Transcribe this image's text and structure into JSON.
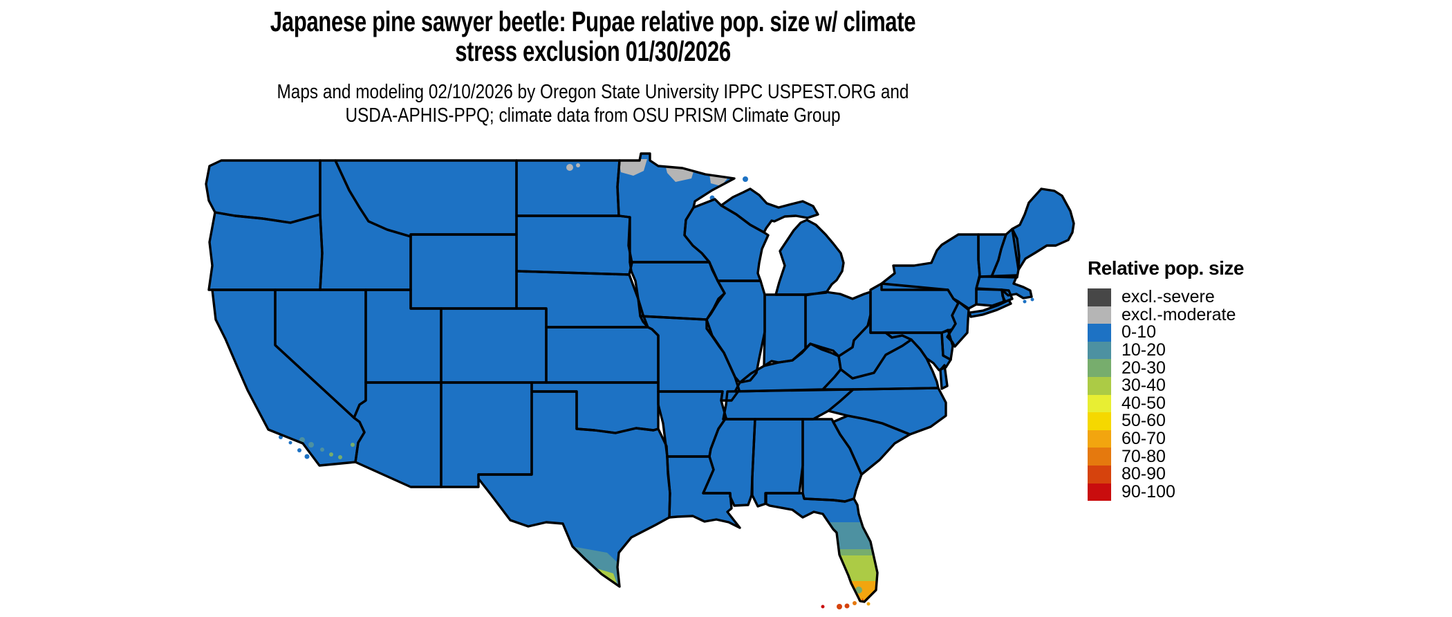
{
  "header": {
    "title_line1": "Japanese pine sawyer beetle: Pupae relative pop. size w/ climate",
    "title_line2": "stress exclusion 01/30/2026",
    "subtitle_line1": "Maps and modeling 02/10/2026 by Oregon State University IPPC USPEST.ORG and",
    "subtitle_line2": "USDA-APHIS-PPQ; climate data from OSU PRISM Climate Group"
  },
  "legend": {
    "title": "Relative pop. size",
    "items": [
      {
        "label": "excl.-severe",
        "color": "#474747"
      },
      {
        "label": "excl.-moderate",
        "color": "#b5b5b5"
      },
      {
        "label": "0-10",
        "color": "#1d72c4"
      },
      {
        "label": "10-20",
        "color": "#4d91a1"
      },
      {
        "label": "20-30",
        "color": "#77ad6d"
      },
      {
        "label": "30-40",
        "color": "#accb45"
      },
      {
        "label": "40-50",
        "color": "#e8ee33"
      },
      {
        "label": "50-60",
        "color": "#f5d800"
      },
      {
        "label": "60-70",
        "color": "#f2a50f"
      },
      {
        "label": "70-80",
        "color": "#e5790e"
      },
      {
        "label": "80-90",
        "color": "#d6430d"
      },
      {
        "label": "90-100",
        "color": "#c90d0e"
      }
    ]
  },
  "map": {
    "region": "Contiguous United States",
    "base_class": "0-10",
    "notable_regions": [
      {
        "area": "Most of the contiguous US",
        "class": "0-10"
      },
      {
        "area": "Northern Minnesota / northern North Dakota border strip",
        "class": "excl.-moderate"
      },
      {
        "area": "Central Florida peninsula",
        "class": "10-20"
      },
      {
        "area": "South-central Florida",
        "class": "20-30 and 30-40"
      },
      {
        "area": "Southwest Florida patches",
        "class": "40-50 and 50-60"
      },
      {
        "area": "Southern Florida tip",
        "class": "60-70"
      },
      {
        "area": "Florida Keys",
        "class": "70-80, 80-90, 90-100"
      },
      {
        "area": "Lower Rio Grande Valley, south Texas",
        "class": "10-20 with 30-40 at tip"
      },
      {
        "area": "Southern California coastal patches",
        "class": "10-20 and 20-30"
      }
    ]
  }
}
